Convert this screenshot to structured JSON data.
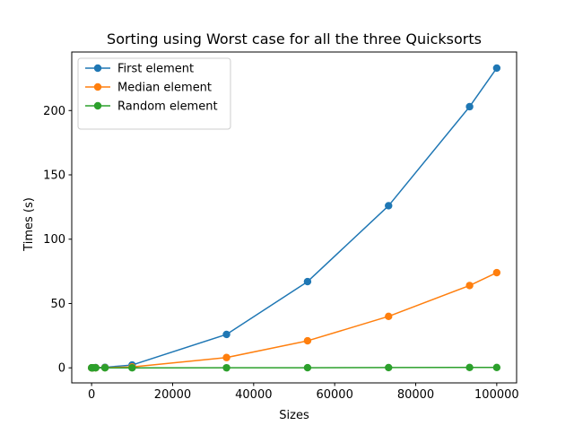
{
  "chart_data": {
    "type": "line",
    "title": "Sorting using Worst case for all the three Quicksorts",
    "xlabel": "Sizes",
    "ylabel": "Times (s)",
    "xlim": [
      -4900,
      104900
    ],
    "ylim": [
      -11.7,
      245.5
    ],
    "x_ticks": [
      0,
      20000,
      40000,
      60000,
      80000,
      100000
    ],
    "y_ticks": [
      0,
      50,
      100,
      150,
      200
    ],
    "grid": false,
    "legend_position": "upper-left",
    "x": [
      10,
      100,
      300,
      1000,
      3300,
      10000,
      33300,
      53300,
      73300,
      93300,
      100000
    ],
    "series": [
      {
        "name": "First element",
        "color": "#1f77b4",
        "values": [
          0,
          0,
          0,
          0.2,
          0.4,
          2.2,
          26,
          67,
          126,
          203,
          233
        ]
      },
      {
        "name": "Median element",
        "color": "#ff7f0e",
        "values": [
          0,
          0,
          0,
          0.05,
          0.1,
          0.7,
          8,
          21,
          40,
          64,
          74
        ]
      },
      {
        "name": "Random element",
        "color": "#2ca02c",
        "values": [
          0,
          0,
          0,
          0,
          0,
          0,
          0.05,
          0.1,
          0.2,
          0.3,
          0.3
        ]
      }
    ]
  }
}
